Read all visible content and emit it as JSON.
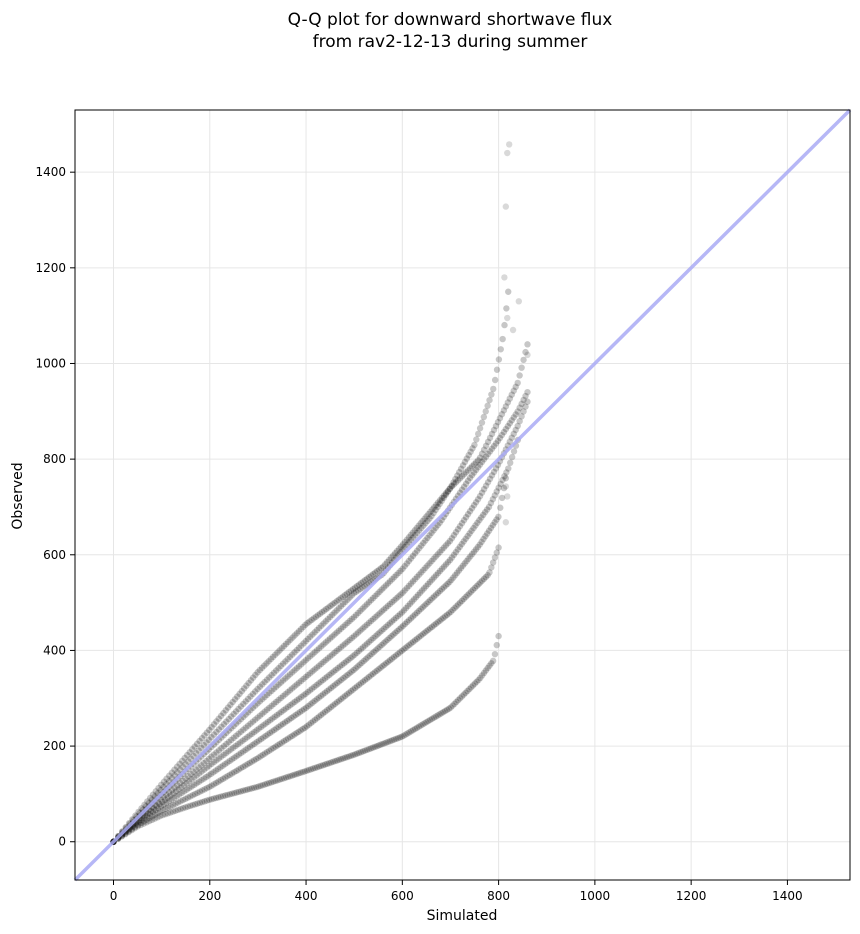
{
  "chart_data": {
    "type": "scatter",
    "title": [
      "Q-Q plot for downward shortwave flux",
      "from rav2-12-13 during summer"
    ],
    "xlabel": "Simulated",
    "ylabel": "Observed",
    "xlim": [
      -80,
      1530
    ],
    "ylim": [
      -80,
      1530
    ],
    "xticks": [
      0,
      200,
      400,
      600,
      800,
      1000,
      1200,
      1400
    ],
    "yticks": [
      0,
      200,
      400,
      600,
      800,
      1000,
      1200,
      1400
    ],
    "grid": true,
    "legend": "none",
    "reference_line": {
      "from": [
        -80,
        -80
      ],
      "to": [
        1530,
        1530
      ],
      "color": "#a9aaf5"
    },
    "point_color": "#000000",
    "series": [
      {
        "x": [
          0,
          50,
          100,
          150,
          200,
          300,
          400,
          500,
          600,
          700,
          760,
          790,
          800
        ],
        "y": [
          0,
          32,
          55,
          72,
          88,
          115,
          148,
          182,
          220,
          280,
          340,
          380,
          430
        ]
      },
      {
        "x": [
          0,
          50,
          100,
          200,
          300,
          400,
          500,
          600,
          700,
          780,
          800
        ],
        "y": [
          0,
          35,
          65,
          115,
          175,
          240,
          320,
          400,
          480,
          560,
          615
        ]
      },
      {
        "x": [
          0,
          50,
          100,
          200,
          300,
          400,
          500,
          600,
          700,
          760,
          800,
          815
        ],
        "y": [
          0,
          40,
          75,
          140,
          210,
          280,
          360,
          450,
          545,
          620,
          680,
          760
        ]
      },
      {
        "x": [
          0,
          50,
          100,
          200,
          300,
          400,
          500,
          600,
          700,
          780,
          820,
          840
        ],
        "y": [
          0,
          42,
          82,
          160,
          235,
          310,
          390,
          480,
          590,
          700,
          780,
          840
        ]
      },
      {
        "x": [
          0,
          50,
          100,
          200,
          300,
          400,
          500,
          600,
          700,
          760,
          800,
          840,
          860
        ],
        "y": [
          0,
          45,
          90,
          175,
          260,
          345,
          430,
          520,
          630,
          720,
          790,
          870,
          920
        ]
      },
      {
        "x": [
          0,
          50,
          100,
          200,
          300,
          400,
          500,
          600,
          680,
          740,
          800,
          840,
          860
        ],
        "y": [
          0,
          50,
          100,
          195,
          290,
          380,
          470,
          570,
          670,
          760,
          840,
          900,
          940
        ]
      },
      {
        "x": [
          0,
          50,
          100,
          200,
          300,
          400,
          500,
          560,
          600,
          660,
          700,
          760,
          800,
          840,
          860
        ],
        "y": [
          0,
          55,
          110,
          215,
          320,
          420,
          520,
          560,
          610,
          680,
          740,
          800,
          880,
          960,
          1040
        ]
      },
      {
        "x": [
          0,
          50,
          100,
          200,
          300,
          400,
          500,
          560,
          600,
          650,
          700,
          750,
          790,
          810,
          820
        ],
        "y": [
          0,
          60,
          120,
          235,
          355,
          455,
          530,
          575,
          620,
          680,
          740,
          830,
          950,
          1060,
          1150
        ]
      }
    ],
    "outliers": [
      {
        "x": 822,
        "y": 1458
      },
      {
        "x": 818,
        "y": 1440
      },
      {
        "x": 815,
        "y": 1328
      },
      {
        "x": 812,
        "y": 1180
      },
      {
        "x": 842,
        "y": 1130
      },
      {
        "x": 818,
        "y": 1095
      },
      {
        "x": 830,
        "y": 1070
      },
      {
        "x": 860,
        "y": 1018
      },
      {
        "x": 815,
        "y": 743
      },
      {
        "x": 818,
        "y": 722
      },
      {
        "x": 815,
        "y": 668
      }
    ]
  }
}
